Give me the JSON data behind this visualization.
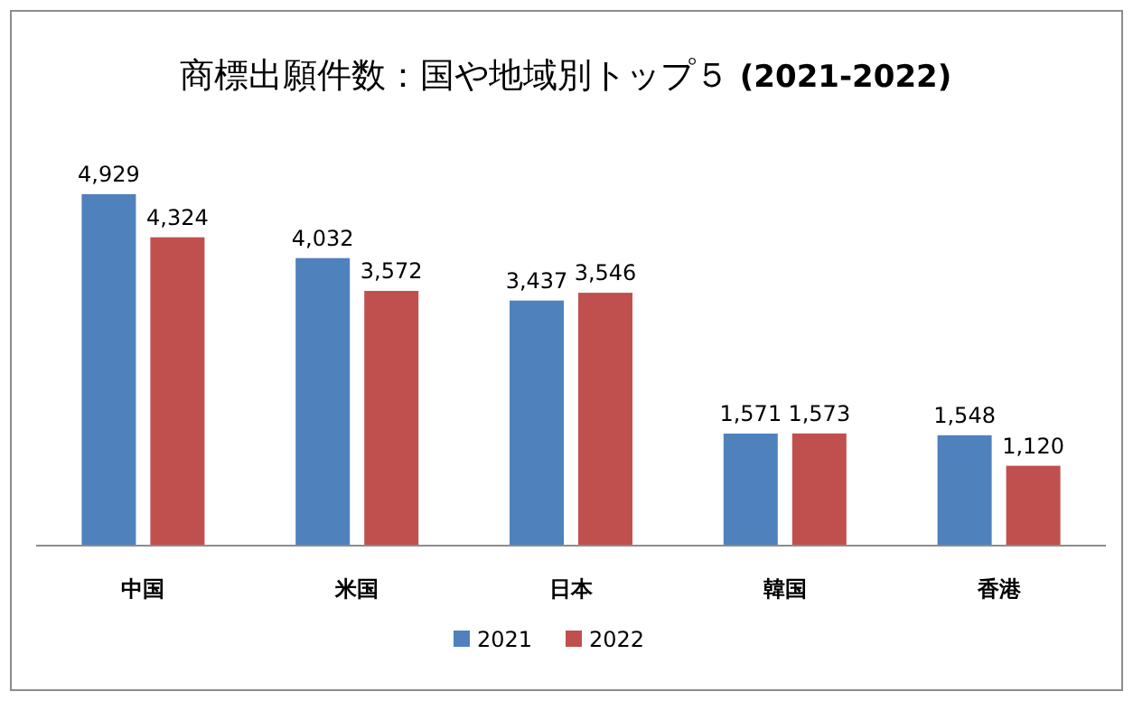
{
  "chart_data": {
    "type": "bar",
    "title": "商標出願件数：国や地域別トップ５ **(2021-2022)**",
    "categories": [
      "中国",
      "米国",
      "日本",
      "韓国",
      "香港"
    ],
    "series": [
      {
        "name": "2021",
        "color": "#4f81bd",
        "values": [
          4929,
          4032,
          3437,
          1571,
          1548
        ],
        "value_labels": [
          "4,929",
          "4,032",
          "3,437",
          "1,571",
          "1,548"
        ]
      },
      {
        "name": "2022",
        "color": "#c0504d",
        "values": [
          4324,
          3572,
          3546,
          1573,
          1120
        ],
        "value_labels": [
          "4,324",
          "3,572",
          "3,546",
          "1,573",
          "1,120"
        ]
      }
    ],
    "legend": "bottom"
  }
}
